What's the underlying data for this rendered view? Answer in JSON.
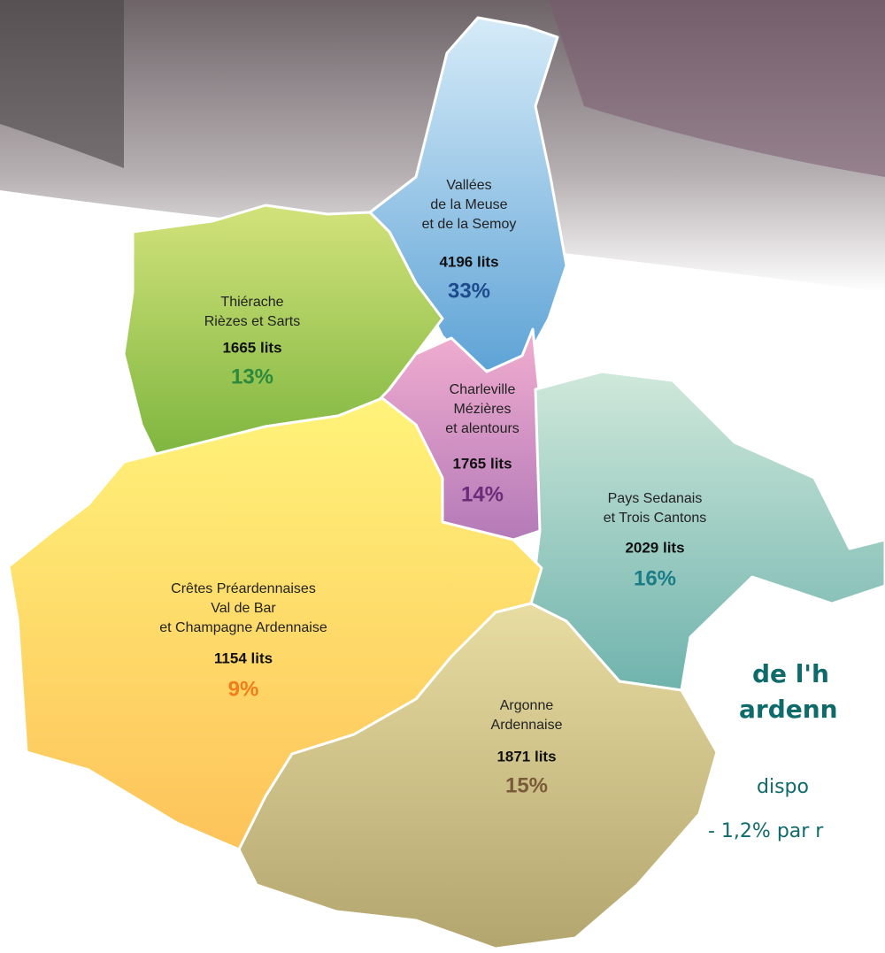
{
  "regions": [
    {
      "name": [
        "Vallées",
        "de la Meuse",
        "et de la Semoy"
      ],
      "beds": "4196 lits",
      "share": "33%"
    },
    {
      "name": [
        "Thiérache",
        "Rièzes et Sarts"
      ],
      "beds": "1665 lits",
      "share": "13%"
    },
    {
      "name": [
        "Charleville",
        "Mézières",
        "et alentours"
      ],
      "beds": "1765 lits",
      "share": "14%"
    },
    {
      "name": [
        "Pays Sedanais",
        "et Trois Cantons"
      ],
      "beds": "2029 lits",
      "share": "16%"
    },
    {
      "name": [
        "Crêtes Préardennaises",
        "Val de Bar",
        "et Champagne Ardennaise"
      ],
      "beds": "1154 lits",
      "share": "9%"
    },
    {
      "name": [
        "Argonne",
        "Ardennaise"
      ],
      "beds": "1871 lits",
      "share": "15%"
    }
  ],
  "side_text": {
    "heading": [
      "de l'h",
      "ardenn"
    ],
    "lines": [
      "dispo",
      "- 1,2% par r"
    ]
  }
}
